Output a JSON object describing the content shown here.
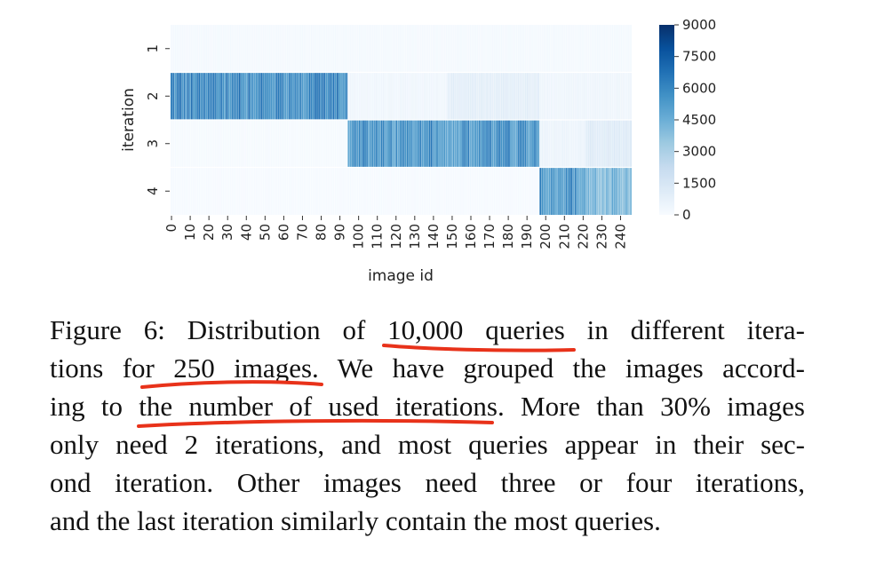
{
  "chart_data": {
    "type": "heatmap",
    "xlabel": "image id",
    "ylabel": "iteration",
    "y_categories": [
      "1",
      "2",
      "3",
      "4"
    ],
    "x_tick_labels": [
      "0",
      "10",
      "20",
      "30",
      "40",
      "50",
      "60",
      "70",
      "80",
      "90",
      "100",
      "110",
      "120",
      "130",
      "140",
      "150",
      "160",
      "170",
      "180",
      "190",
      "200",
      "210",
      "220",
      "230",
      "240"
    ],
    "x_count": 250,
    "colorbar": {
      "min": 0,
      "max": 9000,
      "ticks": [
        "0",
        "1500",
        "3000",
        "4500",
        "6000",
        "7500",
        "9000"
      ]
    },
    "color_low": "#f7fbff",
    "color_high": "#08306b",
    "blocks": [
      {
        "iteration": "1",
        "image_start": 0,
        "image_end": 249,
        "value": 150
      },
      {
        "iteration": "2",
        "image_start": 0,
        "image_end": 95,
        "value": 6000
      },
      {
        "iteration": "2",
        "image_start": 96,
        "image_end": 149,
        "value": 350
      },
      {
        "iteration": "2",
        "image_start": 150,
        "image_end": 199,
        "value": 900
      },
      {
        "iteration": "2",
        "image_start": 200,
        "image_end": 249,
        "value": 400
      },
      {
        "iteration": "3",
        "image_start": 0,
        "image_end": 95,
        "value": 80
      },
      {
        "iteration": "3",
        "image_start": 96,
        "image_end": 199,
        "value": 5600
      },
      {
        "iteration": "3",
        "image_start": 200,
        "image_end": 224,
        "value": 500
      },
      {
        "iteration": "3",
        "image_start": 225,
        "image_end": 249,
        "value": 1100
      },
      {
        "iteration": "4",
        "image_start": 0,
        "image_end": 199,
        "value": 60
      },
      {
        "iteration": "4",
        "image_start": 200,
        "image_end": 224,
        "value": 5600
      },
      {
        "iteration": "4",
        "image_start": 225,
        "image_end": 249,
        "value": 4200
      }
    ]
  },
  "caption": {
    "lines": [
      "Figure 6: Distribution of 10,000 queries in different itera-",
      "tions for 250 images. We have grouped the images accord-",
      "ing to the number of used iterations. More than 30% images",
      "only need 2 iterations, and most queries appear in their sec-",
      "ond iteration. Other images need three or four iterations,",
      "and the last iteration similarly contain the most queries."
    ]
  },
  "annotation_color": "#e8321a"
}
